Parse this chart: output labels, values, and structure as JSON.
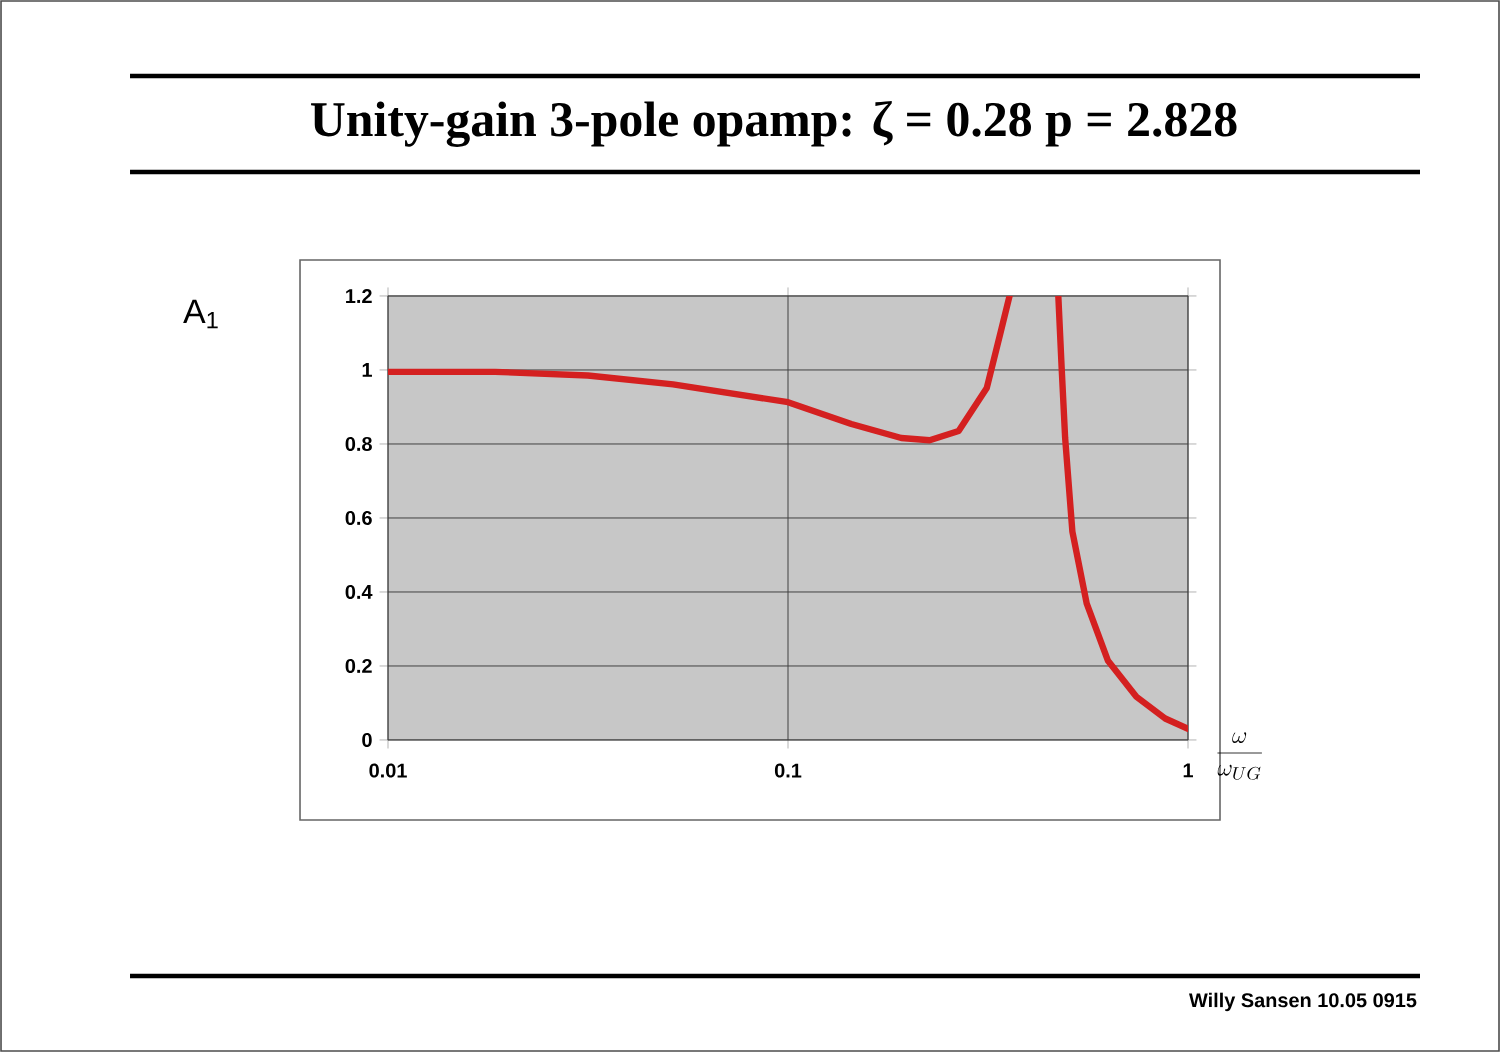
{
  "chart_data": {
    "type": "line",
    "title": "Unity-gain 3-pole opamp:  ζ = 0.28   p = 2.828",
    "xlabel": "\\frac{\\omega}{\\omega_{UG}}",
    "ylabel": "A$_{1}$",
    "log": "x",
    "xlim": [
      0.01,
      1
    ],
    "ylim": [
      0,
      1.2
    ],
    "xticks": [
      0.01,
      0.1,
      1
    ],
    "yticks": [
      0,
      0.2,
      0.4,
      0.6,
      0.8,
      1,
      1.2
    ],
    "grid": true,
    "marker": "none",
    "line_style": "solid",
    "series": [
      {
        "color": "#d42020",
        "x": [
          0.01,
          0.0185,
          0.0316,
          0.0516,
          0.1,
          0.144,
          0.192,
          0.226,
          0.267,
          0.314,
          0.341,
          0.358,
          0.42,
          0.474,
          0.483,
          0.493,
          0.514,
          0.558,
          0.631,
          0.743,
          0.877,
          1
        ],
        "values": [
          0.995,
          0.995,
          0.985,
          0.961,
          0.913,
          0.854,
          0.816,
          0.81,
          0.835,
          0.951,
          1.107,
          1.2,
          null,
          1.2,
          1.01,
          0.816,
          0.563,
          0.369,
          0.214,
          0.117,
          0.058,
          0.03
        ]
      }
    ],
    "annotations": [
      "Willy Sansen 10.05 0915"
    ]
  }
}
